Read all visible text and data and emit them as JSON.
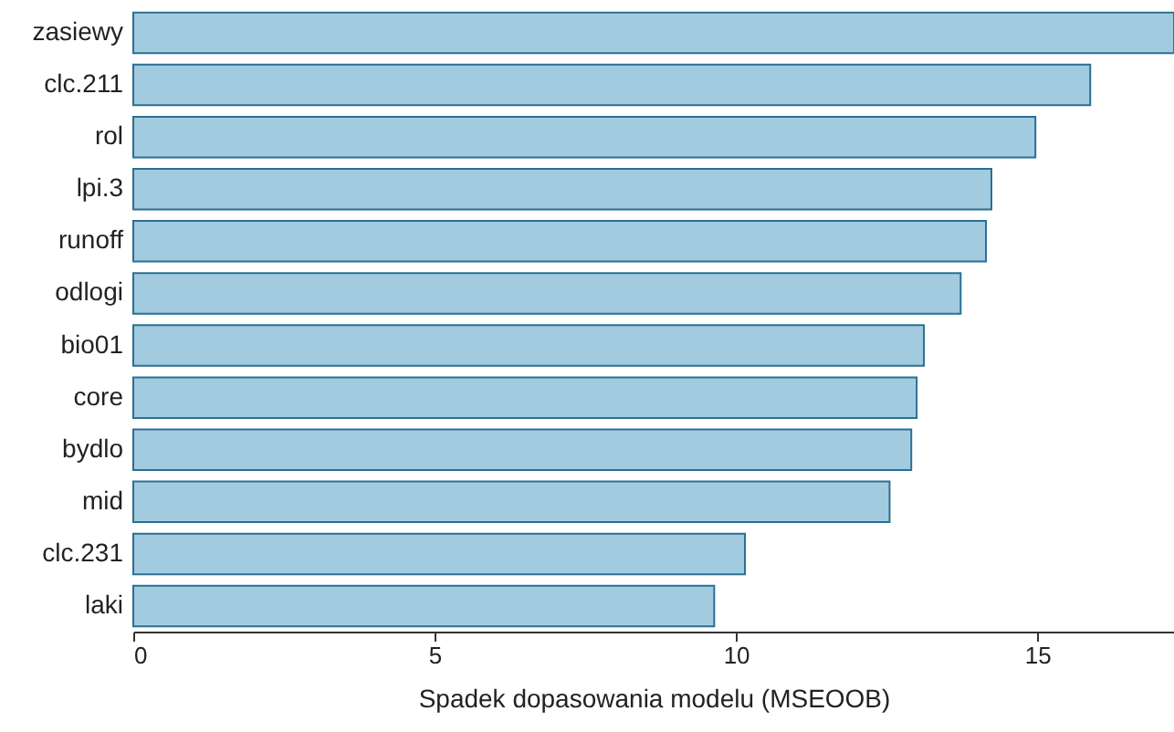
{
  "chart_data": {
    "type": "bar",
    "orientation": "horizontal",
    "xlabel": "Spadek dopasowania modelu (MSEOOB)",
    "categories": [
      "zasiewy",
      "clc.211",
      "rol",
      "lpi.3",
      "runoff",
      "odlogi",
      "bio01",
      "core",
      "bydlo",
      "mid",
      "clc.231",
      "laki"
    ],
    "values": [
      17.27,
      15.88,
      14.97,
      14.24,
      14.15,
      13.73,
      13.12,
      13.0,
      12.91,
      12.55,
      10.15,
      9.64
    ],
    "color": "#a3cbe0",
    "xlim": [
      0,
      17.27
    ],
    "xticks": [
      0,
      5,
      10,
      15
    ],
    "grid": false
  }
}
